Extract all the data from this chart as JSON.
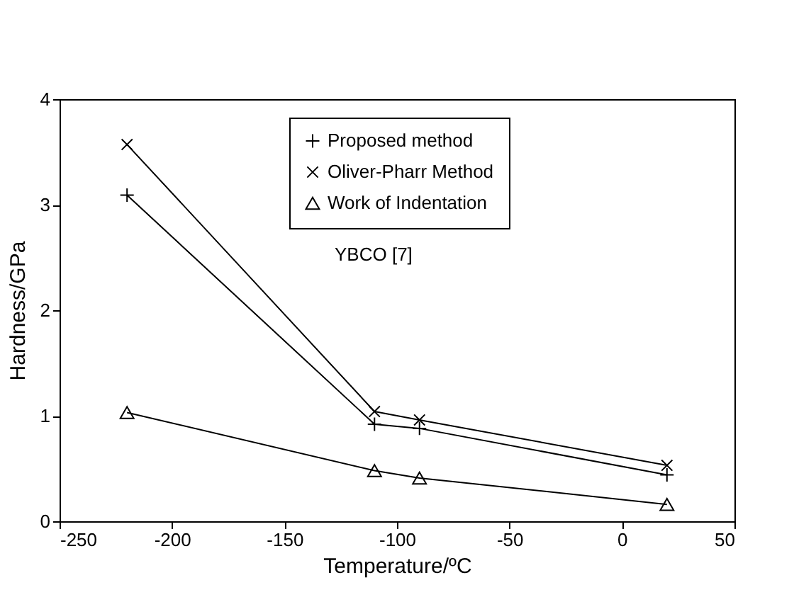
{
  "chart_data": {
    "type": "line",
    "xlabel": "Temperature/ºC",
    "ylabel": "Hardness/GPa",
    "x": [
      -220,
      -110,
      -90,
      20
    ],
    "series": [
      {
        "name": "Proposed method",
        "color": "#000000",
        "marker": "plus",
        "values": [
          3.09,
          0.92,
          0.88,
          0.44
        ]
      },
      {
        "name": "Oliver-Pharr Method",
        "color": "#000000",
        "marker": "cross",
        "values": [
          3.57,
          1.04,
          0.96,
          0.53
        ]
      },
      {
        "name": "Work of Indentation",
        "color": "#000000",
        "marker": "triangle",
        "values": [
          1.03,
          0.48,
          0.41,
          0.16
        ]
      }
    ],
    "annotations": [
      "YBCO [7]"
    ],
    "xlim": [
      -250,
      50
    ],
    "xticks": [
      -250,
      -200,
      -150,
      -100,
      -50,
      0,
      50
    ],
    "ylim": [
      0,
      4
    ],
    "yticks": [
      0,
      1,
      2,
      3,
      4
    ],
    "grid": false,
    "legend": "top right"
  }
}
